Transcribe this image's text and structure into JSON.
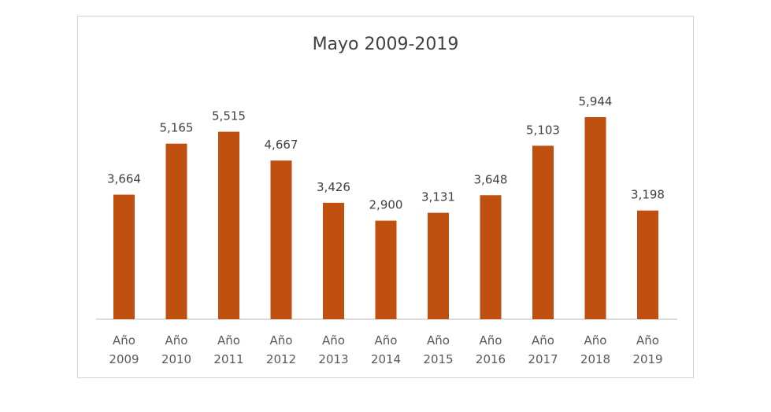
{
  "chart_data": {
    "type": "bar",
    "title": "Mayo 2009-2019",
    "categories": [
      [
        "Año",
        "2009"
      ],
      [
        "Año",
        "2010"
      ],
      [
        "Año",
        "2011"
      ],
      [
        "Año",
        "2012"
      ],
      [
        "Año",
        "2013"
      ],
      [
        "Año",
        "2014"
      ],
      [
        "Año",
        "2015"
      ],
      [
        "Año",
        "2016"
      ],
      [
        "Año",
        "2017"
      ],
      [
        "Año",
        "2018"
      ],
      [
        "Año",
        "2019"
      ]
    ],
    "values": [
      3664,
      5165,
      5515,
      4667,
      3426,
      2900,
      3131,
      3648,
      5103,
      5944,
      3198
    ],
    "value_labels": [
      "3,664",
      "5,165",
      "5,515",
      "4,667",
      "3,426",
      "2,900",
      "3,131",
      "3,648",
      "5,103",
      "5,944",
      "3,198"
    ],
    "xlabel": "",
    "ylabel": "",
    "ylim": [
      0,
      5944
    ],
    "grid": false,
    "legend": "none",
    "bar_color": "#c0500f"
  }
}
